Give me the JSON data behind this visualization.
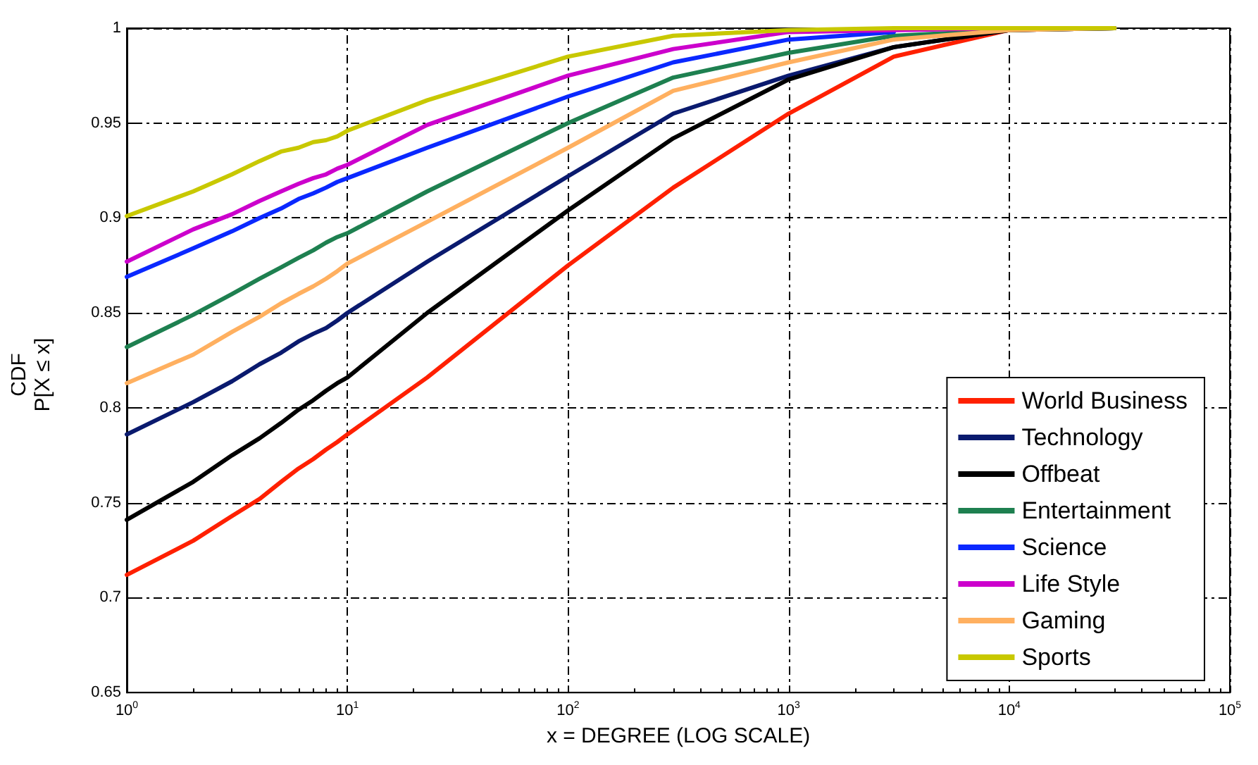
{
  "chart_data": {
    "type": "line",
    "xlabel": "x = DEGREE (LOG SCALE)",
    "ylabel": "CDF\nP[X ≤ x]",
    "log": "x",
    "grid": true,
    "legend": "bottom right",
    "marker": "none",
    "line_style": "solid",
    "xlim": [
      1,
      100000
    ],
    "ylim": [
      0.65,
      1
    ],
    "xticks": [
      {
        "value": 1,
        "label": "10$^{0}$"
      },
      {
        "value": 10,
        "label": "10$^{1}$"
      },
      {
        "value": 100,
        "label": "10$^{2}$"
      },
      {
        "value": 1000,
        "label": "10$^{3}$"
      },
      {
        "value": 10000,
        "label": "10$^{4}$"
      },
      {
        "value": 100000,
        "label": "10$^{5}$"
      }
    ],
    "yticks": [
      0.65,
      0.7,
      0.75,
      0.8,
      0.85,
      0.9,
      0.95,
      1
    ],
    "x": [
      1,
      2,
      3,
      4,
      5,
      6,
      7,
      8,
      9,
      10,
      23,
      100,
      300,
      1000,
      3000,
      10000,
      30000
    ],
    "series": [
      {
        "name": "World Business",
        "color": "#ff2000",
        "values": [
          0.712,
          0.73,
          0.743,
          0.752,
          0.761,
          0.768,
          0.773,
          0.778,
          0.782,
          0.786,
          0.816,
          0.875,
          0.916,
          0.955,
          0.985,
          0.999,
          1
        ]
      },
      {
        "name": "Technology",
        "color": "#0a1a6e",
        "values": [
          0.786,
          0.803,
          0.814,
          0.823,
          0.829,
          0.835,
          0.839,
          0.842,
          0.846,
          0.85,
          0.877,
          0.922,
          0.955,
          0.975,
          0.99,
          0.999,
          1
        ]
      },
      {
        "name": "Offbeat",
        "color": "#000000",
        "values": [
          0.741,
          0.761,
          0.775,
          0.784,
          0.792,
          0.799,
          0.804,
          0.809,
          0.813,
          0.816,
          0.85,
          0.904,
          0.942,
          0.973,
          0.99,
          0.999,
          1
        ]
      },
      {
        "name": "Entertainment",
        "color": "#1e8050",
        "values": [
          0.832,
          0.849,
          0.86,
          0.868,
          0.874,
          0.879,
          0.883,
          0.887,
          0.89,
          0.892,
          0.914,
          0.95,
          0.974,
          0.987,
          0.996,
          0.999,
          1
        ]
      },
      {
        "name": "Science",
        "color": "#0a28ff",
        "values": [
          0.869,
          0.884,
          0.893,
          0.9,
          0.905,
          0.91,
          0.913,
          0.916,
          0.919,
          0.921,
          0.937,
          0.964,
          0.982,
          0.994,
          0.998,
          null,
          null
        ]
      },
      {
        "name": "Life Style",
        "color": "#cc00cc",
        "values": [
          0.877,
          0.894,
          0.902,
          0.909,
          0.914,
          0.918,
          0.921,
          0.923,
          0.926,
          0.928,
          0.949,
          0.975,
          0.989,
          0.998,
          0.999,
          1,
          null
        ]
      },
      {
        "name": "Gaming",
        "color": "#ffb060",
        "values": [
          0.813,
          0.828,
          0.84,
          0.848,
          0.855,
          0.86,
          0.864,
          0.868,
          0.872,
          0.876,
          0.898,
          0.937,
          0.967,
          0.982,
          0.994,
          0.999,
          1
        ]
      },
      {
        "name": "Sports",
        "color": "#c8c800",
        "values": [
          0.901,
          0.914,
          0.923,
          0.93,
          0.935,
          0.937,
          0.94,
          0.941,
          0.943,
          0.946,
          0.962,
          0.985,
          0.996,
          0.999,
          1,
          1,
          1
        ]
      }
    ]
  }
}
